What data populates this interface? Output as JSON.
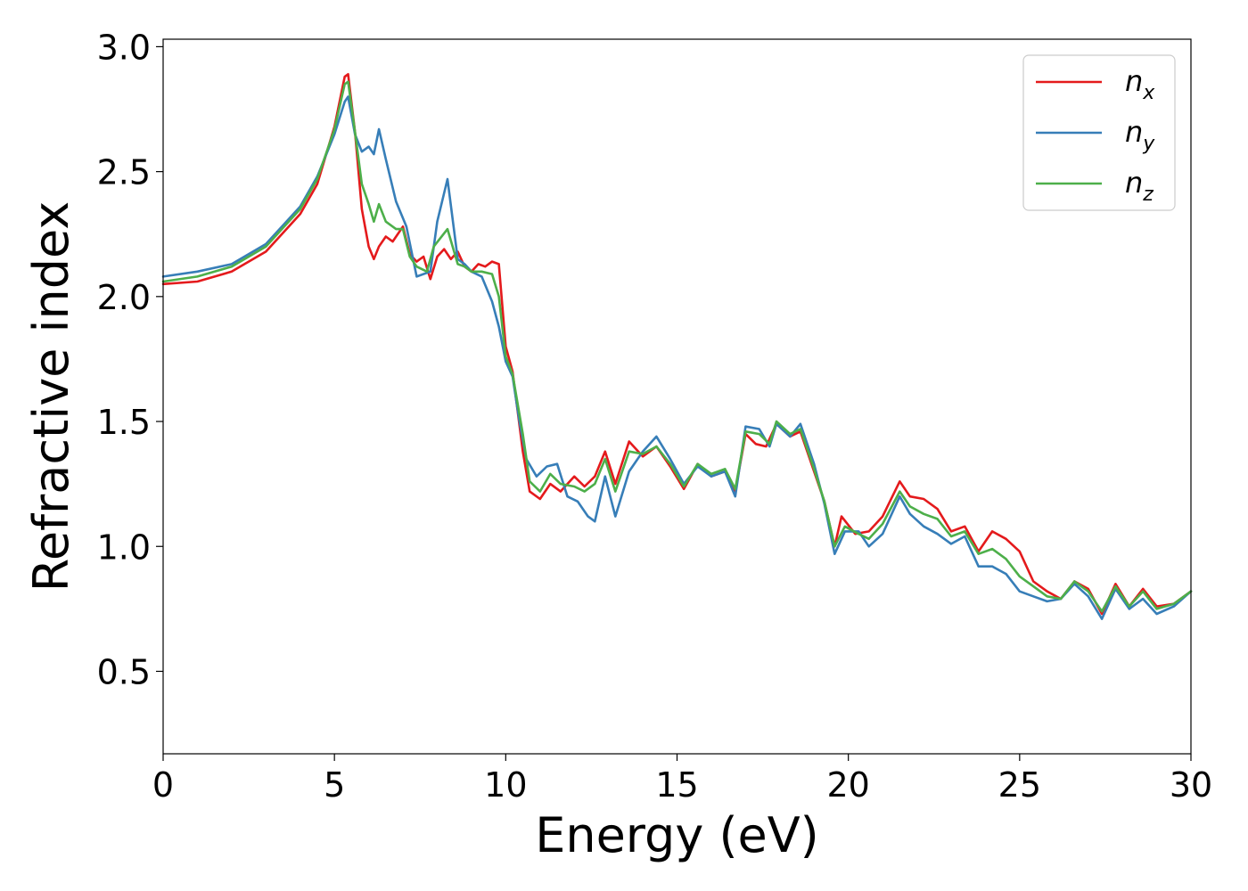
{
  "chart_data": {
    "type": "line",
    "xlabel": "Energy (eV)",
    "ylabel": "Refractive index",
    "xlim": [
      0,
      30
    ],
    "ylim": [
      0.17,
      3.03
    ],
    "xticks": [
      0,
      5,
      10,
      15,
      20,
      25,
      30
    ],
    "xtick_labels": [
      "0",
      "5",
      "10",
      "15",
      "20",
      "25",
      "30"
    ],
    "yticks": [
      0.5,
      1.0,
      1.5,
      2.0,
      2.5,
      3.0
    ],
    "ytick_labels": [
      "0.5",
      "1.0",
      "1.5",
      "2.0",
      "2.5",
      "3.0"
    ],
    "grid": false,
    "legend_position": "top-right",
    "series": [
      {
        "name": "n",
        "subscript": "x",
        "color": "#e41a1c",
        "points": [
          [
            0,
            2.05
          ],
          [
            1,
            2.06
          ],
          [
            2,
            2.1
          ],
          [
            3,
            2.18
          ],
          [
            4,
            2.33
          ],
          [
            4.5,
            2.45
          ],
          [
            5,
            2.68
          ],
          [
            5.3,
            2.88
          ],
          [
            5.4,
            2.89
          ],
          [
            5.6,
            2.66
          ],
          [
            5.8,
            2.35
          ],
          [
            6.0,
            2.2
          ],
          [
            6.15,
            2.15
          ],
          [
            6.3,
            2.2
          ],
          [
            6.5,
            2.24
          ],
          [
            6.7,
            2.22
          ],
          [
            7.0,
            2.28
          ],
          [
            7.2,
            2.17
          ],
          [
            7.4,
            2.14
          ],
          [
            7.6,
            2.16
          ],
          [
            7.8,
            2.07
          ],
          [
            8.0,
            2.16
          ],
          [
            8.2,
            2.19
          ],
          [
            8.4,
            2.15
          ],
          [
            8.6,
            2.18
          ],
          [
            8.8,
            2.12
          ],
          [
            9.0,
            2.1
          ],
          [
            9.2,
            2.13
          ],
          [
            9.4,
            2.12
          ],
          [
            9.6,
            2.14
          ],
          [
            9.8,
            2.13
          ],
          [
            10.0,
            1.8
          ],
          [
            10.2,
            1.7
          ],
          [
            10.5,
            1.38
          ],
          [
            10.7,
            1.22
          ],
          [
            11.0,
            1.19
          ],
          [
            11.3,
            1.25
          ],
          [
            11.6,
            1.22
          ],
          [
            12.0,
            1.28
          ],
          [
            12.3,
            1.24
          ],
          [
            12.6,
            1.28
          ],
          [
            12.9,
            1.38
          ],
          [
            13.2,
            1.25
          ],
          [
            13.6,
            1.42
          ],
          [
            14.0,
            1.36
          ],
          [
            14.4,
            1.4
          ],
          [
            14.8,
            1.32
          ],
          [
            15.2,
            1.23
          ],
          [
            15.6,
            1.33
          ],
          [
            16.0,
            1.28
          ],
          [
            16.4,
            1.3
          ],
          [
            16.7,
            1.22
          ],
          [
            17.0,
            1.45
          ],
          [
            17.3,
            1.41
          ],
          [
            17.6,
            1.4
          ],
          [
            17.9,
            1.49
          ],
          [
            18.3,
            1.44
          ],
          [
            18.6,
            1.46
          ],
          [
            19.0,
            1.3
          ],
          [
            19.3,
            1.18
          ],
          [
            19.6,
            1.0
          ],
          [
            19.8,
            1.12
          ],
          [
            20.2,
            1.05
          ],
          [
            20.6,
            1.06
          ],
          [
            21.0,
            1.12
          ],
          [
            21.5,
            1.26
          ],
          [
            21.8,
            1.2
          ],
          [
            22.2,
            1.19
          ],
          [
            22.6,
            1.15
          ],
          [
            23.0,
            1.06
          ],
          [
            23.4,
            1.08
          ],
          [
            23.8,
            0.98
          ],
          [
            24.2,
            1.06
          ],
          [
            24.6,
            1.03
          ],
          [
            25.0,
            0.98
          ],
          [
            25.4,
            0.86
          ],
          [
            25.8,
            0.82
          ],
          [
            26.2,
            0.79
          ],
          [
            26.6,
            0.86
          ],
          [
            27.0,
            0.83
          ],
          [
            27.4,
            0.73
          ],
          [
            27.8,
            0.85
          ],
          [
            28.2,
            0.76
          ],
          [
            28.6,
            0.83
          ],
          [
            29.0,
            0.76
          ],
          [
            29.5,
            0.77
          ],
          [
            30.0,
            0.82
          ]
        ]
      },
      {
        "name": "n",
        "subscript": "y",
        "color": "#377eb8",
        "points": [
          [
            0,
            2.08
          ],
          [
            1,
            2.1
          ],
          [
            2,
            2.13
          ],
          [
            3,
            2.21
          ],
          [
            4,
            2.36
          ],
          [
            4.5,
            2.48
          ],
          [
            5,
            2.65
          ],
          [
            5.3,
            2.78
          ],
          [
            5.4,
            2.8
          ],
          [
            5.6,
            2.65
          ],
          [
            5.8,
            2.58
          ],
          [
            6.0,
            2.6
          ],
          [
            6.15,
            2.57
          ],
          [
            6.3,
            2.67
          ],
          [
            6.5,
            2.55
          ],
          [
            6.8,
            2.38
          ],
          [
            7.1,
            2.28
          ],
          [
            7.4,
            2.08
          ],
          [
            7.8,
            2.1
          ],
          [
            8.0,
            2.3
          ],
          [
            8.3,
            2.47
          ],
          [
            8.6,
            2.15
          ],
          [
            8.8,
            2.13
          ],
          [
            9.0,
            2.1
          ],
          [
            9.3,
            2.08
          ],
          [
            9.6,
            1.98
          ],
          [
            9.8,
            1.88
          ],
          [
            10.0,
            1.74
          ],
          [
            10.2,
            1.68
          ],
          [
            10.4,
            1.5
          ],
          [
            10.6,
            1.35
          ],
          [
            10.9,
            1.28
          ],
          [
            11.2,
            1.32
          ],
          [
            11.5,
            1.33
          ],
          [
            11.8,
            1.2
          ],
          [
            12.1,
            1.18
          ],
          [
            12.4,
            1.12
          ],
          [
            12.6,
            1.1
          ],
          [
            12.9,
            1.28
          ],
          [
            13.2,
            1.12
          ],
          [
            13.6,
            1.3
          ],
          [
            14.0,
            1.38
          ],
          [
            14.4,
            1.44
          ],
          [
            14.8,
            1.35
          ],
          [
            15.2,
            1.25
          ],
          [
            15.6,
            1.32
          ],
          [
            16.0,
            1.28
          ],
          [
            16.4,
            1.3
          ],
          [
            16.7,
            1.2
          ],
          [
            17.0,
            1.48
          ],
          [
            17.4,
            1.47
          ],
          [
            17.7,
            1.4
          ],
          [
            17.9,
            1.49
          ],
          [
            18.3,
            1.44
          ],
          [
            18.6,
            1.49
          ],
          [
            19.0,
            1.33
          ],
          [
            19.3,
            1.17
          ],
          [
            19.6,
            0.97
          ],
          [
            19.9,
            1.06
          ],
          [
            20.3,
            1.06
          ],
          [
            20.6,
            1.0
          ],
          [
            21.0,
            1.05
          ],
          [
            21.5,
            1.2
          ],
          [
            21.8,
            1.13
          ],
          [
            22.2,
            1.08
          ],
          [
            22.6,
            1.05
          ],
          [
            23.0,
            1.01
          ],
          [
            23.4,
            1.04
          ],
          [
            23.8,
            0.92
          ],
          [
            24.2,
            0.92
          ],
          [
            24.6,
            0.89
          ],
          [
            25.0,
            0.82
          ],
          [
            25.4,
            0.8
          ],
          [
            25.8,
            0.78
          ],
          [
            26.2,
            0.79
          ],
          [
            26.6,
            0.85
          ],
          [
            27.0,
            0.8
          ],
          [
            27.4,
            0.71
          ],
          [
            27.8,
            0.83
          ],
          [
            28.2,
            0.75
          ],
          [
            28.6,
            0.79
          ],
          [
            29.0,
            0.73
          ],
          [
            29.5,
            0.76
          ],
          [
            30.0,
            0.82
          ]
        ]
      },
      {
        "name": "n",
        "subscript": "z",
        "color": "#4daf4a",
        "points": [
          [
            0,
            2.06
          ],
          [
            1,
            2.08
          ],
          [
            2,
            2.12
          ],
          [
            3,
            2.2
          ],
          [
            4,
            2.35
          ],
          [
            4.5,
            2.47
          ],
          [
            5,
            2.67
          ],
          [
            5.3,
            2.85
          ],
          [
            5.4,
            2.86
          ],
          [
            5.6,
            2.66
          ],
          [
            5.8,
            2.45
          ],
          [
            6.0,
            2.37
          ],
          [
            6.15,
            2.3
          ],
          [
            6.3,
            2.37
          ],
          [
            6.5,
            2.3
          ],
          [
            6.8,
            2.27
          ],
          [
            7.0,
            2.27
          ],
          [
            7.2,
            2.16
          ],
          [
            7.4,
            2.12
          ],
          [
            7.7,
            2.1
          ],
          [
            7.9,
            2.2
          ],
          [
            8.3,
            2.27
          ],
          [
            8.6,
            2.13
          ],
          [
            8.8,
            2.12
          ],
          [
            9.0,
            2.1
          ],
          [
            9.3,
            2.1
          ],
          [
            9.6,
            2.09
          ],
          [
            9.8,
            2.0
          ],
          [
            10.0,
            1.76
          ],
          [
            10.2,
            1.69
          ],
          [
            10.5,
            1.45
          ],
          [
            10.7,
            1.26
          ],
          [
            11.0,
            1.22
          ],
          [
            11.3,
            1.29
          ],
          [
            11.6,
            1.25
          ],
          [
            12.0,
            1.24
          ],
          [
            12.3,
            1.22
          ],
          [
            12.6,
            1.25
          ],
          [
            12.9,
            1.35
          ],
          [
            13.2,
            1.22
          ],
          [
            13.6,
            1.38
          ],
          [
            14.0,
            1.37
          ],
          [
            14.4,
            1.4
          ],
          [
            14.8,
            1.33
          ],
          [
            15.2,
            1.24
          ],
          [
            15.6,
            1.33
          ],
          [
            16.0,
            1.29
          ],
          [
            16.4,
            1.31
          ],
          [
            16.7,
            1.23
          ],
          [
            17.0,
            1.46
          ],
          [
            17.4,
            1.45
          ],
          [
            17.7,
            1.41
          ],
          [
            17.9,
            1.5
          ],
          [
            18.3,
            1.45
          ],
          [
            18.6,
            1.47
          ],
          [
            19.0,
            1.31
          ],
          [
            19.3,
            1.18
          ],
          [
            19.6,
            1.0
          ],
          [
            19.9,
            1.08
          ],
          [
            20.3,
            1.05
          ],
          [
            20.6,
            1.03
          ],
          [
            21.0,
            1.09
          ],
          [
            21.5,
            1.22
          ],
          [
            21.8,
            1.16
          ],
          [
            22.2,
            1.13
          ],
          [
            22.6,
            1.11
          ],
          [
            23.0,
            1.04
          ],
          [
            23.4,
            1.06
          ],
          [
            23.8,
            0.97
          ],
          [
            24.2,
            0.99
          ],
          [
            24.6,
            0.95
          ],
          [
            25.0,
            0.88
          ],
          [
            25.4,
            0.84
          ],
          [
            25.8,
            0.8
          ],
          [
            26.2,
            0.79
          ],
          [
            26.6,
            0.86
          ],
          [
            27.0,
            0.82
          ],
          [
            27.4,
            0.74
          ],
          [
            27.8,
            0.84
          ],
          [
            28.2,
            0.76
          ],
          [
            28.6,
            0.82
          ],
          [
            29.0,
            0.75
          ],
          [
            29.5,
            0.77
          ],
          [
            30.0,
            0.82
          ]
        ]
      }
    ]
  }
}
